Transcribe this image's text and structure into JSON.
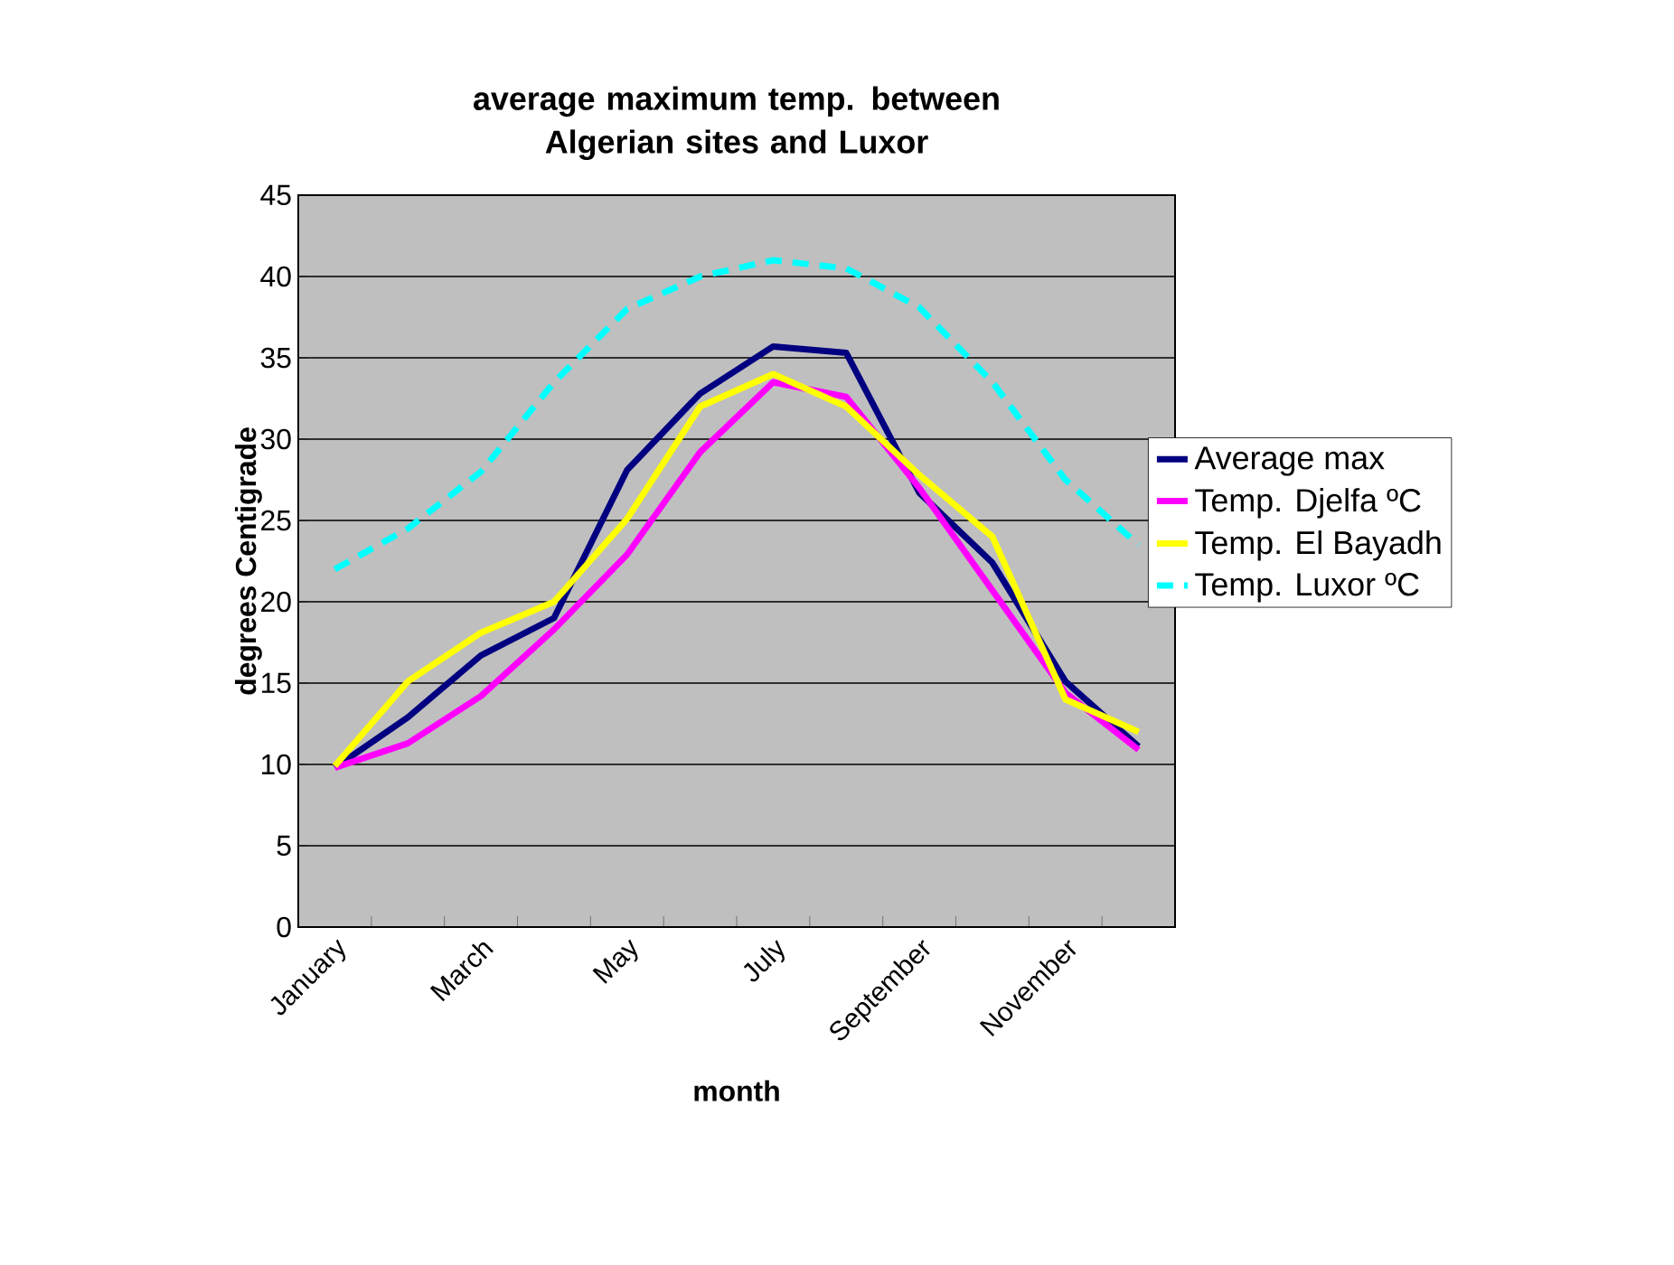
{
  "chart_data": {
    "type": "line",
    "title": "average maximum temp. between Algerian sites and Luxor",
    "xlabel": "month",
    "ylabel": "degrees Centigrade",
    "categories": [
      "January",
      null,
      "March",
      null,
      "May",
      null,
      "July",
      null,
      "September",
      null,
      "November",
      null
    ],
    "series": [
      {
        "name": "Average  max",
        "color": "#000080",
        "values": [
          9.8,
          12.9,
          16.7,
          19.0,
          28.1,
          32.8,
          35.7,
          35.3,
          26.7,
          22.4,
          15.1,
          11.1
        ]
      },
      {
        "name": "Temp. Djelfa ºC",
        "color": "#ff00ff",
        "values": [
          9.8,
          11.3,
          14.2,
          18.3,
          22.9,
          29.2,
          33.5,
          32.6,
          27.0,
          20.7,
          14.4,
          10.9
        ]
      },
      {
        "name": "Temp. El Bayadh",
        "color": "#ffff00",
        "values": [
          9.9,
          15.1,
          18.1,
          20.0,
          25.1,
          32.0,
          34.0,
          32.0,
          27.8,
          24.0,
          14.0,
          12.0
        ]
      },
      {
        "name": "Temp. Luxor ºC",
        "color": "#00ffff",
        "line_style": "dashed",
        "values": [
          22,
          24.5,
          28,
          33.5,
          38,
          40,
          41,
          40.5,
          38.1,
          33.5,
          27.5,
          23.5
        ]
      }
    ],
    "ylim": [
      0,
      45
    ],
    "yticks": [
      0,
      5,
      10,
      15,
      20,
      25,
      30,
      35,
      40,
      45
    ],
    "grid": "y",
    "legend": "right",
    "marker": "none"
  }
}
